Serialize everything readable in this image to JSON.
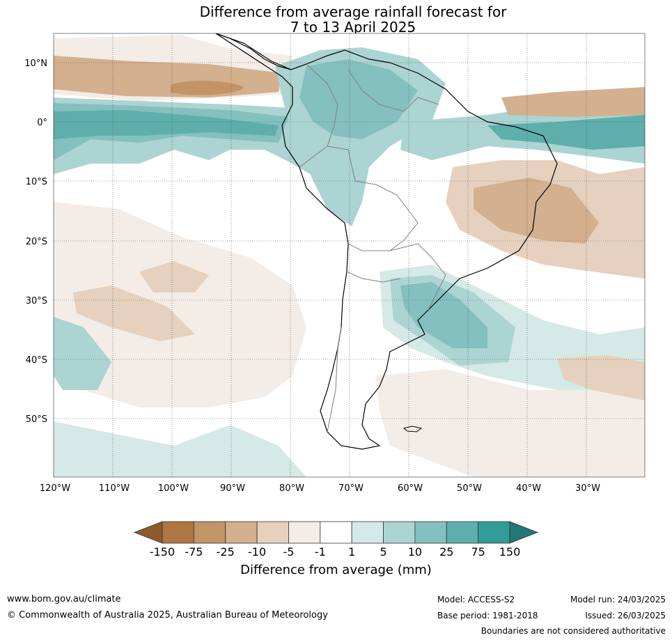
{
  "title_line1": "Difference from average rainfall forecast for",
  "title_line2": "7 to 13 April 2025",
  "lat_labels": [
    "10°N",
    "0°",
    "10°S",
    "20°S",
    "30°S",
    "40°S",
    "50°S"
  ],
  "lon_labels": [
    "120°W",
    "110°W",
    "100°W",
    "90°W",
    "80°W",
    "70°W",
    "60°W",
    "50°W",
    "40°W",
    "30°W"
  ],
  "colorbar": {
    "ticks": [
      "-150",
      "-75",
      "-25",
      "-10",
      "-5",
      "-1",
      "1",
      "5",
      "10",
      "25",
      "75",
      "150"
    ],
    "colors": [
      "#8f5a2b",
      "#ae7642",
      "#c29466",
      "#d3b08e",
      "#e5d1be",
      "#f4ece6",
      "#ffffff",
      "#d5e9e7",
      "#acd4d2",
      "#84c0bf",
      "#5eaeac",
      "#329c99",
      "#237876"
    ],
    "label": "Difference from average (mm)"
  },
  "footer": {
    "url": "www.bom.gov.au/climate",
    "copyright": "© Commonwealth of Australia 2025, Australian Bureau of Meteorology",
    "model": "Model: ACCESS-S2",
    "base_period": "Base period: 1981-2018",
    "model_run": "Model run: 24/03/2025",
    "issued": "Issued: 26/03/2025",
    "disclaimer": "Boundaries are not considered authoritative"
  }
}
